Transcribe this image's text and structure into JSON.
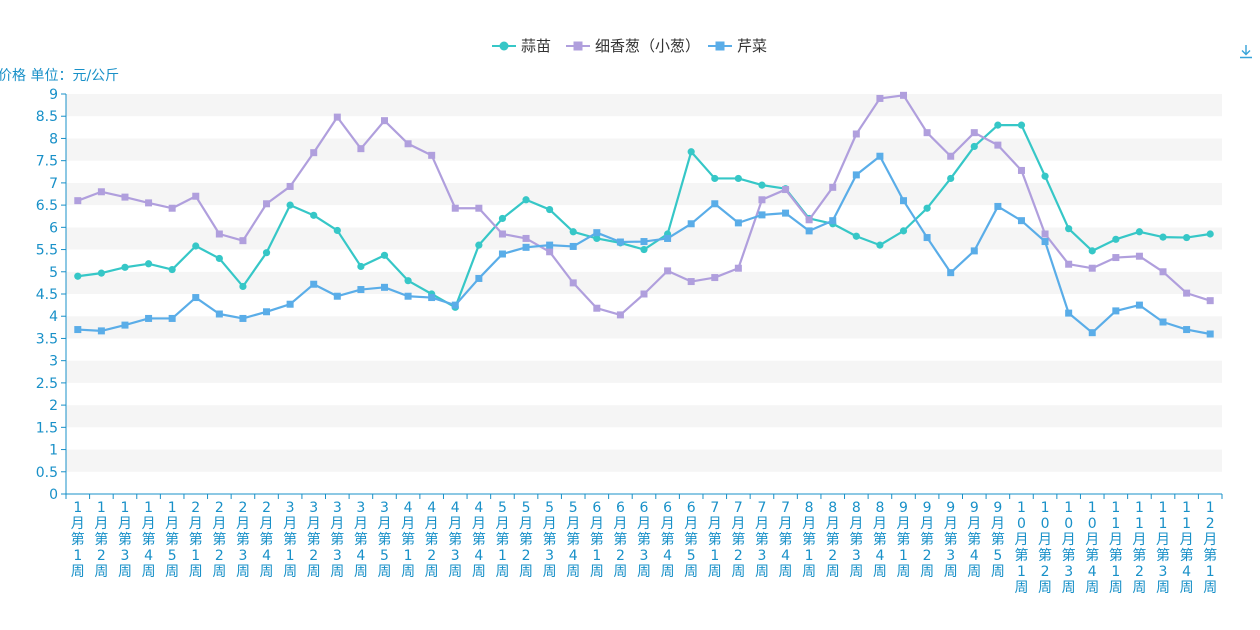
{
  "chart_data": {
    "type": "line",
    "ylabel": "价格 单位：元/公斤",
    "ylim": [
      0,
      9
    ],
    "yticks": [
      "0",
      "0.5",
      "1",
      "1.5",
      "2",
      "2.5",
      "3",
      "3.5",
      "4",
      "4.5",
      "5",
      "5.5",
      "6",
      "6.5",
      "7",
      "7.5",
      "8",
      "8.5",
      "9"
    ],
    "grid": "horizontal banded",
    "legend_position": "top-center",
    "categories": [
      "1月第1周",
      "1月第2周",
      "1月第3周",
      "1月第4周",
      "1月第5周",
      "2月第1周",
      "2月第2周",
      "2月第3周",
      "2月第4周",
      "3月第1周",
      "3月第2周",
      "3月第3周",
      "3月第4周",
      "3月第5周",
      "4月第1周",
      "4月第2周",
      "4月第3周",
      "4月第4周",
      "5月第1周",
      "5月第2周",
      "5月第3周",
      "5月第4周",
      "6月第1周",
      "6月第2周",
      "6月第3周",
      "6月第4周",
      "6月第5周",
      "7月第1周",
      "7月第2周",
      "7月第3周",
      "7月第4周",
      "8月第1周",
      "8月第2周",
      "8月第3周",
      "8月第4周",
      "9月第1周",
      "9月第2周",
      "9月第3周",
      "9月第4周",
      "9月第5周",
      "10月第1周",
      "10月第2周",
      "10月第3周",
      "10月第4周",
      "11月第1周",
      "11月第2周",
      "11月第3周",
      "11月第4周",
      "12月第1周"
    ],
    "series": [
      {
        "name": "蒜苗",
        "color": "#36c7c7",
        "marker": "circle",
        "values": [
          4.9,
          4.97,
          5.1,
          5.18,
          5.05,
          5.58,
          5.3,
          4.67,
          5.43,
          6.5,
          6.27,
          5.93,
          5.12,
          5.37,
          4.8,
          4.5,
          4.2,
          5.6,
          6.2,
          6.62,
          6.4,
          5.9,
          5.75,
          5.65,
          5.5,
          5.85,
          7.7,
          7.1,
          7.1,
          6.95,
          6.87,
          6.2,
          6.08,
          5.8,
          5.6,
          5.92,
          6.43,
          7.1,
          7.82,
          8.3,
          8.3,
          7.15,
          5.97,
          5.47,
          5.73,
          5.9,
          5.78,
          5.77,
          5.85
        ]
      },
      {
        "name": "细香葱（小葱）",
        "color": "#b09fdd",
        "marker": "square",
        "values": [
          6.6,
          6.8,
          6.68,
          6.55,
          6.43,
          6.7,
          5.85,
          5.7,
          6.53,
          6.92,
          7.68,
          8.48,
          7.77,
          8.4,
          7.88,
          7.62,
          6.43,
          6.43,
          5.85,
          5.75,
          5.45,
          4.75,
          4.18,
          4.03,
          4.5,
          5.02,
          4.78,
          4.87,
          5.08,
          6.62,
          6.85,
          6.17,
          6.9,
          8.1,
          8.9,
          8.97,
          8.13,
          7.6,
          8.13,
          7.85,
          7.28,
          5.85,
          5.17,
          5.08,
          5.32,
          5.35,
          5.0,
          4.52,
          4.35
        ]
      },
      {
        "name": "芹菜",
        "color": "#5aade8",
        "marker": "square",
        "values": [
          3.7,
          3.67,
          3.8,
          3.95,
          3.95,
          4.42,
          4.05,
          3.95,
          4.1,
          4.27,
          4.72,
          4.45,
          4.6,
          4.65,
          4.45,
          4.42,
          4.25,
          4.85,
          5.4,
          5.55,
          5.6,
          5.57,
          5.88,
          5.67,
          5.68,
          5.75,
          6.08,
          6.53,
          6.1,
          6.28,
          6.32,
          5.92,
          6.15,
          7.18,
          7.6,
          6.6,
          5.77,
          4.98,
          5.47,
          6.47,
          6.15,
          5.68,
          4.07,
          3.63,
          4.12,
          4.25,
          3.87,
          3.7,
          3.6
        ]
      }
    ]
  },
  "ui": {
    "download_icon": "download-icon"
  }
}
